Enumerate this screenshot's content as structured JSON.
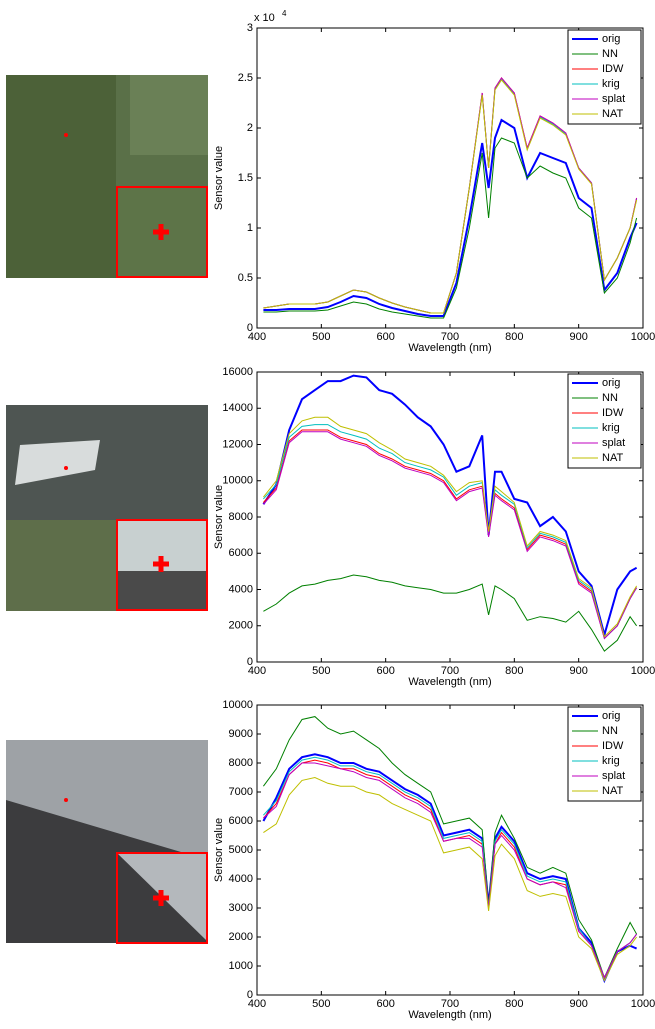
{
  "chart_data": [
    {
      "type": "line",
      "x_label": "Wavelength (nm)",
      "y_label": "Sensor value",
      "y_exponent_base": "x 10",
      "y_exponent": "4",
      "x": [
        410,
        430,
        450,
        470,
        490,
        510,
        530,
        550,
        570,
        590,
        610,
        630,
        650,
        670,
        690,
        710,
        730,
        750,
        760,
        770,
        780,
        800,
        820,
        840,
        860,
        880,
        900,
        920,
        940,
        960,
        980,
        990
      ],
      "xlim": [
        400,
        1000
      ],
      "xticks": [
        400,
        500,
        600,
        700,
        800,
        900,
        1000
      ],
      "ylim": [
        0,
        3
      ],
      "yticks": [
        0,
        0.5,
        1,
        1.5,
        2,
        2.5,
        3
      ],
      "legend": "upper-right",
      "series": [
        {
          "name": "orig",
          "color": "#0000ff",
          "values": [
            0.18,
            0.18,
            0.19,
            0.19,
            0.19,
            0.21,
            0.26,
            0.32,
            0.3,
            0.24,
            0.2,
            0.17,
            0.14,
            0.12,
            0.12,
            0.45,
            1.1,
            1.85,
            1.4,
            1.9,
            2.08,
            2.0,
            1.5,
            1.75,
            1.7,
            1.65,
            1.3,
            1.2,
            0.38,
            0.55,
            0.9,
            1.05
          ]
        },
        {
          "name": "NN",
          "color": "#008000",
          "values": [
            0.16,
            0.16,
            0.17,
            0.17,
            0.17,
            0.18,
            0.22,
            0.26,
            0.24,
            0.19,
            0.16,
            0.14,
            0.12,
            0.1,
            0.1,
            0.4,
            1.0,
            1.75,
            1.1,
            1.8,
            1.9,
            1.85,
            1.5,
            1.62,
            1.55,
            1.5,
            1.2,
            1.1,
            0.35,
            0.5,
            0.85,
            1.1
          ]
        },
        {
          "name": "IDW",
          "color": "#ff0000",
          "values": [
            0.2,
            0.22,
            0.24,
            0.24,
            0.24,
            0.26,
            0.32,
            0.38,
            0.36,
            0.3,
            0.25,
            0.21,
            0.18,
            0.15,
            0.15,
            0.55,
            1.4,
            2.35,
            1.6,
            2.4,
            2.5,
            2.35,
            1.8,
            2.12,
            2.05,
            1.95,
            1.6,
            1.45,
            0.48,
            0.7,
            1.0,
            1.3
          ]
        },
        {
          "name": "krig",
          "color": "#00bfbf",
          "values": [
            0.2,
            0.22,
            0.24,
            0.24,
            0.24,
            0.26,
            0.32,
            0.38,
            0.36,
            0.3,
            0.25,
            0.21,
            0.18,
            0.15,
            0.15,
            0.55,
            1.4,
            2.34,
            1.6,
            2.39,
            2.49,
            2.34,
            1.79,
            2.11,
            2.04,
            1.94,
            1.6,
            1.45,
            0.48,
            0.7,
            1.0,
            1.29
          ]
        },
        {
          "name": "splat",
          "color": "#bf00bf",
          "values": [
            0.2,
            0.22,
            0.24,
            0.24,
            0.24,
            0.26,
            0.32,
            0.38,
            0.36,
            0.3,
            0.25,
            0.21,
            0.18,
            0.15,
            0.15,
            0.55,
            1.4,
            2.35,
            1.6,
            2.4,
            2.5,
            2.35,
            1.8,
            2.12,
            2.05,
            1.95,
            1.6,
            1.45,
            0.48,
            0.7,
            1.0,
            1.3
          ]
        },
        {
          "name": "NAT",
          "color": "#bfbf00",
          "values": [
            0.2,
            0.22,
            0.24,
            0.24,
            0.24,
            0.26,
            0.32,
            0.38,
            0.36,
            0.3,
            0.25,
            0.21,
            0.18,
            0.15,
            0.15,
            0.55,
            1.4,
            2.33,
            1.6,
            2.38,
            2.48,
            2.33,
            1.78,
            2.1,
            2.03,
            1.93,
            1.59,
            1.44,
            0.48,
            0.7,
            1.0,
            1.28
          ]
        }
      ]
    },
    {
      "type": "line",
      "x_label": "Wavelength (nm)",
      "y_label": "Sensor value",
      "x": [
        410,
        430,
        450,
        470,
        490,
        510,
        530,
        550,
        570,
        590,
        610,
        630,
        650,
        670,
        690,
        710,
        730,
        750,
        760,
        770,
        780,
        800,
        820,
        840,
        860,
        880,
        900,
        920,
        940,
        960,
        980,
        990
      ],
      "xlim": [
        400,
        1000
      ],
      "xticks": [
        400,
        500,
        600,
        700,
        800,
        900,
        1000
      ],
      "ylim": [
        0,
        16000
      ],
      "yticks": [
        0,
        2000,
        4000,
        6000,
        8000,
        10000,
        12000,
        14000,
        16000
      ],
      "legend": "upper-right",
      "series": [
        {
          "name": "orig",
          "color": "#0000ff",
          "values": [
            8700,
            9800,
            12800,
            14500,
            15000,
            15500,
            15500,
            15800,
            15700,
            15000,
            14800,
            14200,
            13500,
            13000,
            12000,
            10500,
            10800,
            12500,
            7000,
            10500,
            10500,
            9000,
            8800,
            7500,
            8000,
            7200,
            5000,
            4200,
            1500,
            4000,
            5000,
            5200
          ]
        },
        {
          "name": "NN",
          "color": "#008000",
          "values": [
            2800,
            3200,
            3800,
            4200,
            4300,
            4500,
            4600,
            4800,
            4700,
            4500,
            4400,
            4200,
            4100,
            4000,
            3800,
            3800,
            4000,
            4300,
            2600,
            4200,
            4000,
            3500,
            2300,
            2500,
            2400,
            2200,
            2800,
            1800,
            600,
            1200,
            2500,
            2000
          ]
        },
        {
          "name": "IDW",
          "color": "#ff0000",
          "values": [
            8800,
            9600,
            12200,
            12800,
            12800,
            12800,
            12400,
            12200,
            12000,
            11500,
            11200,
            10800,
            10600,
            10400,
            10000,
            9000,
            9500,
            9700,
            7000,
            9300,
            9000,
            8500,
            6200,
            7000,
            6800,
            6500,
            4400,
            3900,
            1300,
            2000,
            3500,
            4100
          ]
        },
        {
          "name": "krig",
          "color": "#00bfbf",
          "values": [
            9000,
            9800,
            12400,
            13000,
            13100,
            13100,
            12700,
            12500,
            12300,
            11800,
            11500,
            11000,
            10800,
            10600,
            10200,
            9200,
            9700,
            9900,
            7100,
            9500,
            9200,
            8700,
            6300,
            7100,
            6900,
            6600,
            4500,
            4000,
            1300,
            2000,
            3500,
            4100
          ]
        },
        {
          "name": "splat",
          "color": "#bf00bf",
          "values": [
            8700,
            9500,
            12100,
            12700,
            12700,
            12700,
            12300,
            12100,
            11900,
            11400,
            11100,
            10700,
            10500,
            10300,
            9900,
            8900,
            9400,
            9600,
            6900,
            9200,
            8900,
            8400,
            6100,
            6900,
            6700,
            6400,
            4300,
            3800,
            1300,
            2000,
            3500,
            4100
          ]
        },
        {
          "name": "NAT",
          "color": "#bfbf00",
          "values": [
            9100,
            10000,
            12600,
            13300,
            13500,
            13500,
            13000,
            12800,
            12600,
            12100,
            11700,
            11200,
            11000,
            10800,
            10300,
            9400,
            9900,
            10000,
            7200,
            9700,
            9400,
            8800,
            6400,
            7200,
            7000,
            6700,
            4600,
            4100,
            1400,
            2100,
            3600,
            4200
          ]
        }
      ]
    },
    {
      "type": "line",
      "x_label": "Wavelength (nm)",
      "y_label": "Sensor value",
      "x": [
        410,
        430,
        450,
        470,
        490,
        510,
        530,
        550,
        570,
        590,
        610,
        630,
        650,
        670,
        690,
        710,
        730,
        750,
        760,
        770,
        780,
        800,
        820,
        840,
        860,
        880,
        900,
        920,
        940,
        960,
        980,
        990
      ],
      "xlim": [
        400,
        1000
      ],
      "xticks": [
        400,
        500,
        600,
        700,
        800,
        900,
        1000
      ],
      "ylim": [
        0,
        10000
      ],
      "yticks": [
        0,
        1000,
        2000,
        3000,
        4000,
        5000,
        6000,
        7000,
        8000,
        9000,
        10000
      ],
      "legend": "upper-right",
      "series": [
        {
          "name": "orig",
          "color": "#0000ff",
          "values": [
            6000,
            6800,
            7800,
            8200,
            8300,
            8200,
            8000,
            8000,
            7800,
            7700,
            7400,
            7100,
            6900,
            6600,
            5500,
            5600,
            5700,
            5400,
            3100,
            5400,
            5800,
            5300,
            4200,
            4000,
            4100,
            4000,
            2300,
            1800,
            500,
            1500,
            1700,
            1600
          ]
        },
        {
          "name": "NN",
          "color": "#008000",
          "values": [
            7200,
            7800,
            8800,
            9500,
            9600,
            9200,
            9000,
            9100,
            8800,
            8500,
            8000,
            7600,
            7300,
            7000,
            5900,
            6000,
            6100,
            5700,
            3100,
            5600,
            6200,
            5400,
            4400,
            4200,
            4400,
            4200,
            2600,
            1900,
            600,
            1600,
            2500,
            2100
          ]
        },
        {
          "name": "IDW",
          "color": "#ff0000",
          "values": [
            6100,
            6600,
            7600,
            8000,
            8100,
            8000,
            7800,
            7800,
            7600,
            7500,
            7200,
            6900,
            6700,
            6400,
            5300,
            5400,
            5500,
            5200,
            3000,
            5200,
            5600,
            5100,
            4000,
            3800,
            3900,
            3800,
            2200,
            1700,
            600,
            1500,
            1800,
            2100
          ]
        },
        {
          "name": "krig",
          "color": "#00bfbf",
          "values": [
            6200,
            6700,
            7700,
            8100,
            8200,
            8100,
            7900,
            7900,
            7700,
            7600,
            7300,
            7000,
            6800,
            6500,
            5400,
            5500,
            5600,
            5300,
            3000,
            5300,
            5700,
            5200,
            4100,
            3900,
            4000,
            3900,
            2300,
            1700,
            600,
            1500,
            1800,
            2100
          ]
        },
        {
          "name": "splat",
          "color": "#bf00bf",
          "values": [
            6100,
            6500,
            7600,
            8000,
            8000,
            7900,
            7800,
            7700,
            7500,
            7400,
            7100,
            6800,
            6600,
            6300,
            5300,
            5400,
            5400,
            5100,
            3000,
            5200,
            5500,
            5000,
            4000,
            3800,
            3900,
            3700,
            2200,
            1700,
            600,
            1500,
            1800,
            2100
          ]
        },
        {
          "name": "NAT",
          "color": "#bfbf00",
          "values": [
            5600,
            5900,
            6900,
            7400,
            7500,
            7300,
            7200,
            7200,
            7000,
            6900,
            6600,
            6400,
            6200,
            6000,
            4900,
            5000,
            5100,
            4700,
            2900,
            4800,
            5200,
            4700,
            3600,
            3400,
            3500,
            3400,
            2000,
            1600,
            500,
            1400,
            1700,
            2000
          ]
        }
      ]
    }
  ]
}
